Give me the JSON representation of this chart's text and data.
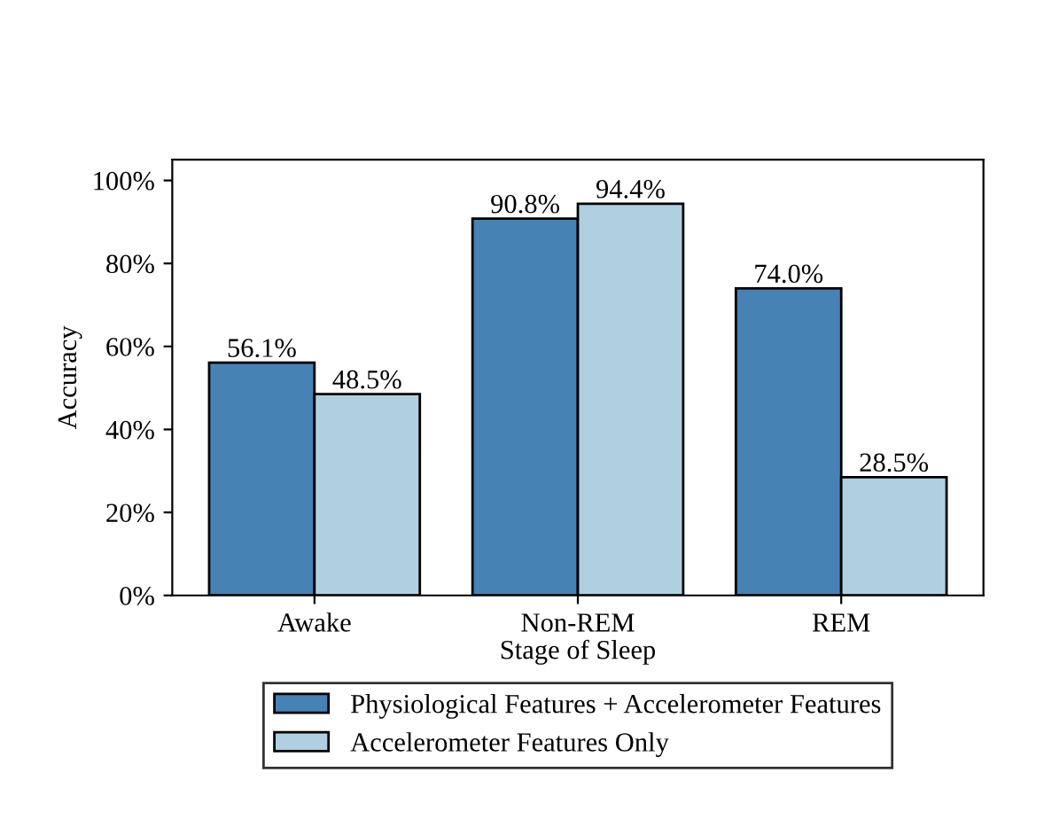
{
  "chart_data": {
    "type": "bar",
    "xlabel": "Stage of Sleep",
    "ylabel": "Accuracy",
    "categories": [
      "Awake",
      "Non-REM",
      "REM"
    ],
    "series": [
      {
        "name": "Physiological Features + Accelerometer Features",
        "color": "#4682b4",
        "values": [
          56.1,
          90.8,
          74.0
        ],
        "value_labels": [
          "56.1%",
          "90.8%",
          "74.0%"
        ]
      },
      {
        "name": "Accelerometer Features Only",
        "color": "#b0cfe1",
        "values": [
          48.5,
          94.4,
          28.5
        ],
        "value_labels": [
          "48.5%",
          "94.4%",
          "28.5%"
        ]
      }
    ],
    "ylim": [
      0,
      105
    ],
    "yticks": [
      {
        "value": 0,
        "label": "0%"
      },
      {
        "value": 20,
        "label": "20%"
      },
      {
        "value": 40,
        "label": "40%"
      },
      {
        "value": 60,
        "label": "60%"
      },
      {
        "value": 80,
        "label": "80%"
      },
      {
        "value": 100,
        "label": "100%"
      }
    ],
    "grid": false,
    "legend": "bottom"
  }
}
